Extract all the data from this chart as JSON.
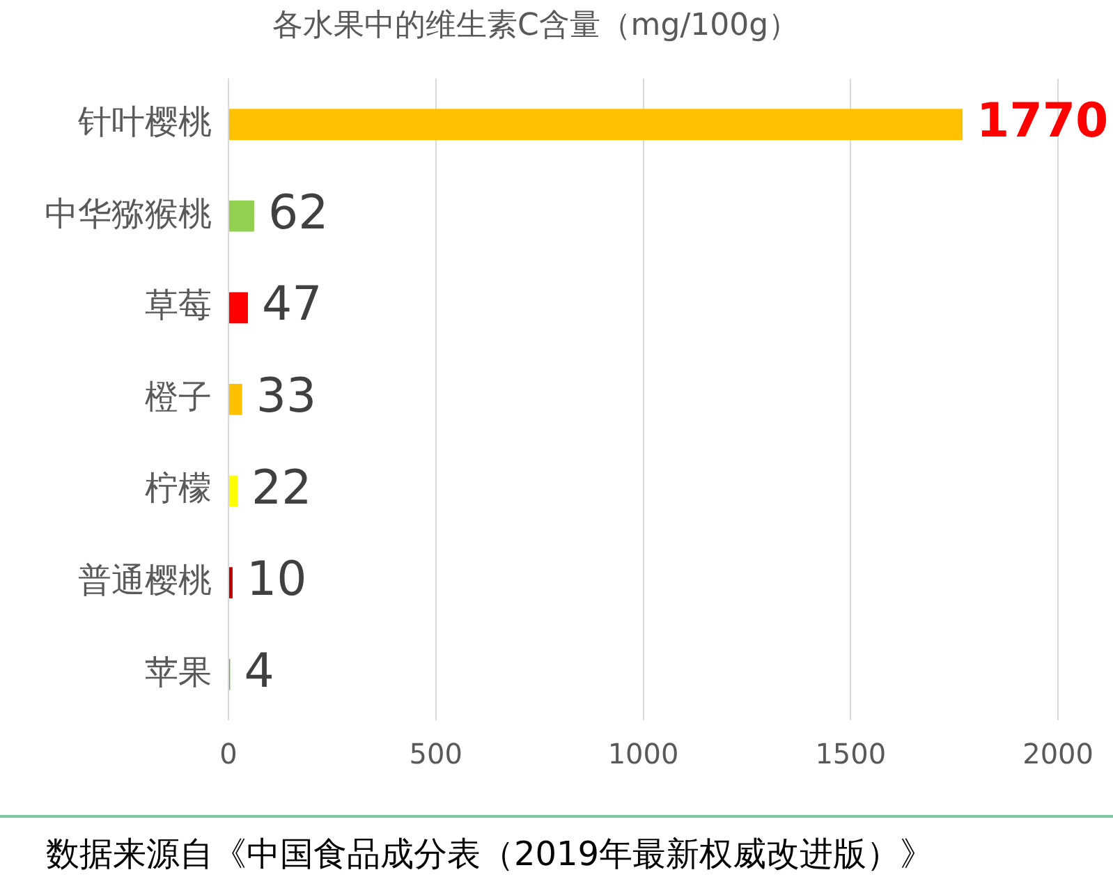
{
  "chart_data": {
    "type": "bar",
    "orientation": "horizontal",
    "title": "各水果中的维生素C含量（mg/100g）",
    "categories": [
      "针叶樱桃",
      "中华猕猴桃",
      "草莓",
      "橙子",
      "柠檬",
      "普通樱桃",
      "苹果"
    ],
    "values": [
      1770,
      62,
      47,
      33,
      22,
      10,
      4
    ],
    "colors": [
      "#ffc000",
      "#92d050",
      "#ff0000",
      "#ffc000",
      "#ffff00",
      "#c00000",
      "#70ad47"
    ],
    "xlim": [
      0,
      2000
    ],
    "xticks": [
      0,
      500,
      1000,
      1500,
      2000
    ],
    "grid": "x",
    "legend": false,
    "data_labels": true,
    "annotations": [
      "数据来源自《中国食品成分表（2019年最新权威改进版）》"
    ]
  }
}
